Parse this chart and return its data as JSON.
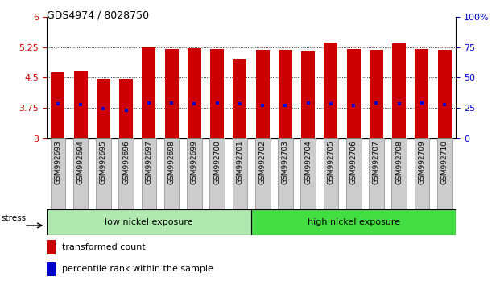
{
  "title": "GDS4974 / 8028750",
  "samples": [
    "GSM992693",
    "GSM992694",
    "GSM992695",
    "GSM992696",
    "GSM992697",
    "GSM992698",
    "GSM992699",
    "GSM992700",
    "GSM992701",
    "GSM992702",
    "GSM992703",
    "GSM992704",
    "GSM992705",
    "GSM992706",
    "GSM992707",
    "GSM992708",
    "GSM992709",
    "GSM992710"
  ],
  "bar_tops": [
    4.62,
    4.67,
    4.47,
    4.46,
    5.27,
    5.2,
    5.22,
    5.2,
    4.97,
    5.19,
    5.19,
    5.16,
    5.37,
    5.21,
    5.19,
    5.34,
    5.21,
    5.18
  ],
  "blue_dots": [
    3.85,
    3.84,
    3.73,
    3.7,
    3.88,
    3.87,
    3.86,
    3.87,
    3.85,
    3.82,
    3.82,
    3.88,
    3.85,
    3.82,
    3.87,
    3.85,
    3.87,
    3.84
  ],
  "bar_bottom": 3.0,
  "ylim_left": [
    3.0,
    6.0
  ],
  "ylim_right": [
    0,
    100
  ],
  "yticks_left": [
    3.0,
    3.75,
    4.5,
    5.25,
    6.0
  ],
  "ytick_labels_left": [
    "3",
    "3.75",
    "4.5",
    "5.25",
    "6"
  ],
  "yticks_right": [
    0,
    25,
    50,
    75,
    100
  ],
  "ytick_labels_right": [
    "0",
    "25",
    "50",
    "75",
    "100%"
  ],
  "bar_color": "#cc0000",
  "dot_color": "#0000cc",
  "bar_width": 0.6,
  "n_group1": 9,
  "n_group2": 9,
  "group1_label": "low nickel exposure",
  "group2_label": "high nickel exposure",
  "group1_color": "#b0e8b0",
  "group2_color": "#44dd44",
  "stress_label": "stress",
  "legend1": "transformed count",
  "legend2": "percentile rank within the sample",
  "tick_label_color_left": "#cc0000",
  "tick_label_color_right": "#0000cc",
  "xlabel_box_color": "#cccccc",
  "xlabel_box_edge": "#888888"
}
